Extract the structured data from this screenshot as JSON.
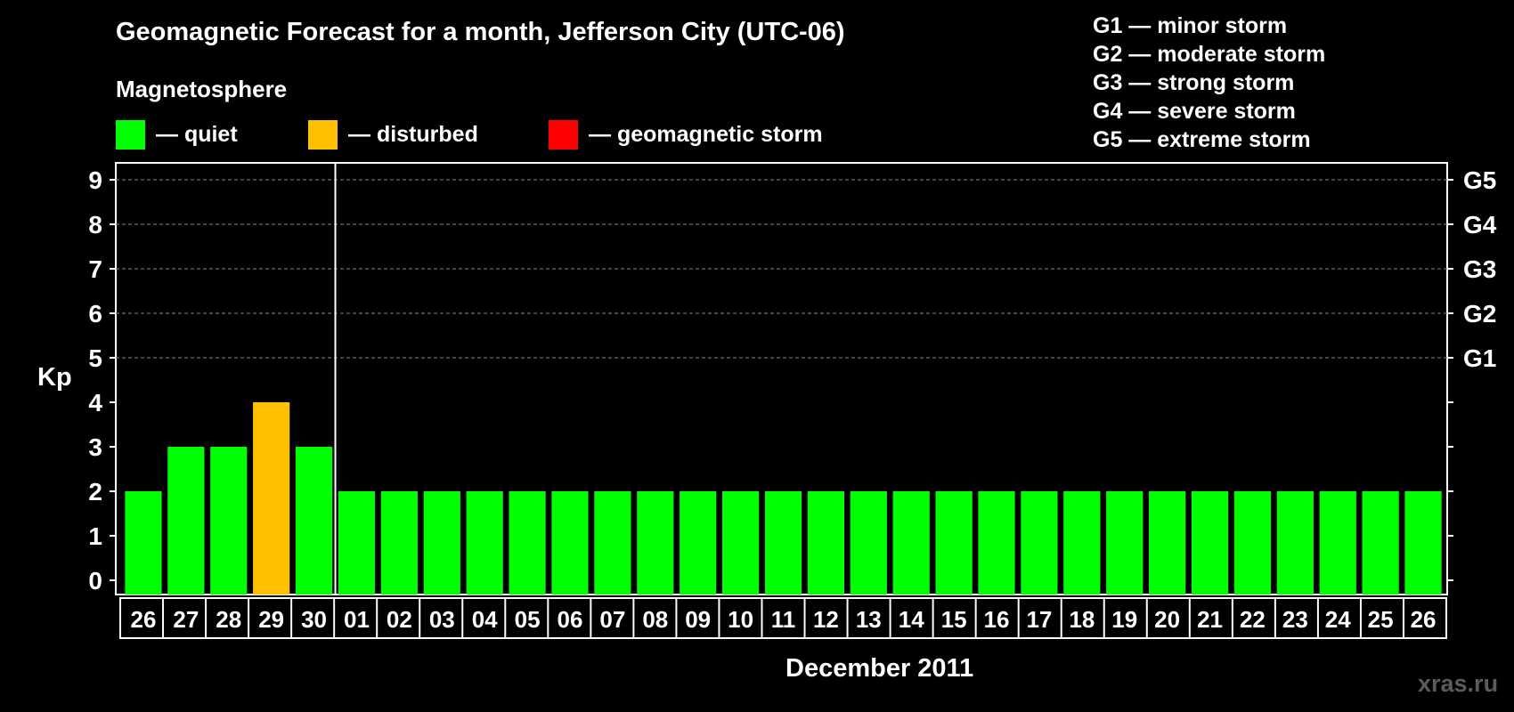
{
  "title": "Geomagnetic Forecast for a month, Jefferson City (UTC-06)",
  "magnetosphere_label": "Magnetosphere",
  "legend": [
    {
      "label": "— quiet",
      "color": "#00ff00"
    },
    {
      "label": "— disturbed",
      "color": "#ffc000"
    },
    {
      "label": "— geomagnetic storm",
      "color": "#ff0000"
    }
  ],
  "storm_scale": [
    "G1 — minor storm",
    "G2 — moderate storm",
    "G3 — strong storm",
    "G4 — severe storm",
    "G5 — extreme storm"
  ],
  "watermark": "xras.ru",
  "chart_data": {
    "type": "bar",
    "title": "Geomagnetic Forecast for a month, Jefferson City (UTC-06)",
    "ylabel": "Kp",
    "xlabel": "December 2011",
    "ylim": [
      0,
      9
    ],
    "yticks": [
      "0",
      "1",
      "2",
      "3",
      "4",
      "5",
      "6",
      "7",
      "8",
      "9"
    ],
    "right_axis_labels": [
      {
        "kp": 5,
        "label": "G1"
      },
      {
        "kp": 6,
        "label": "G2"
      },
      {
        "kp": 7,
        "label": "G3"
      },
      {
        "kp": 8,
        "label": "G4"
      },
      {
        "kp": 9,
        "label": "G5"
      }
    ],
    "grid": "dashed at Kp 5-9",
    "categories": [
      "26",
      "27",
      "28",
      "29",
      "30",
      "01",
      "02",
      "03",
      "04",
      "05",
      "06",
      "07",
      "08",
      "09",
      "10",
      "11",
      "12",
      "13",
      "14",
      "15",
      "16",
      "17",
      "18",
      "19",
      "20",
      "21",
      "22",
      "23",
      "24",
      "25",
      "26"
    ],
    "values": [
      2,
      3,
      3,
      4,
      3,
      2,
      2,
      2,
      2,
      2,
      2,
      2,
      2,
      2,
      2,
      2,
      2,
      2,
      2,
      2,
      2,
      2,
      2,
      2,
      2,
      2,
      2,
      2,
      2,
      2,
      2
    ],
    "bar_colors": [
      "#00ff00",
      "#00ff00",
      "#00ff00",
      "#ffc000",
      "#00ff00",
      "#00ff00",
      "#00ff00",
      "#00ff00",
      "#00ff00",
      "#00ff00",
      "#00ff00",
      "#00ff00",
      "#00ff00",
      "#00ff00",
      "#00ff00",
      "#00ff00",
      "#00ff00",
      "#00ff00",
      "#00ff00",
      "#00ff00",
      "#00ff00",
      "#00ff00",
      "#00ff00",
      "#00ff00",
      "#00ff00",
      "#00ff00",
      "#00ff00",
      "#00ff00",
      "#00ff00",
      "#00ff00",
      "#00ff00"
    ],
    "current_day_divider_after": "30"
  }
}
